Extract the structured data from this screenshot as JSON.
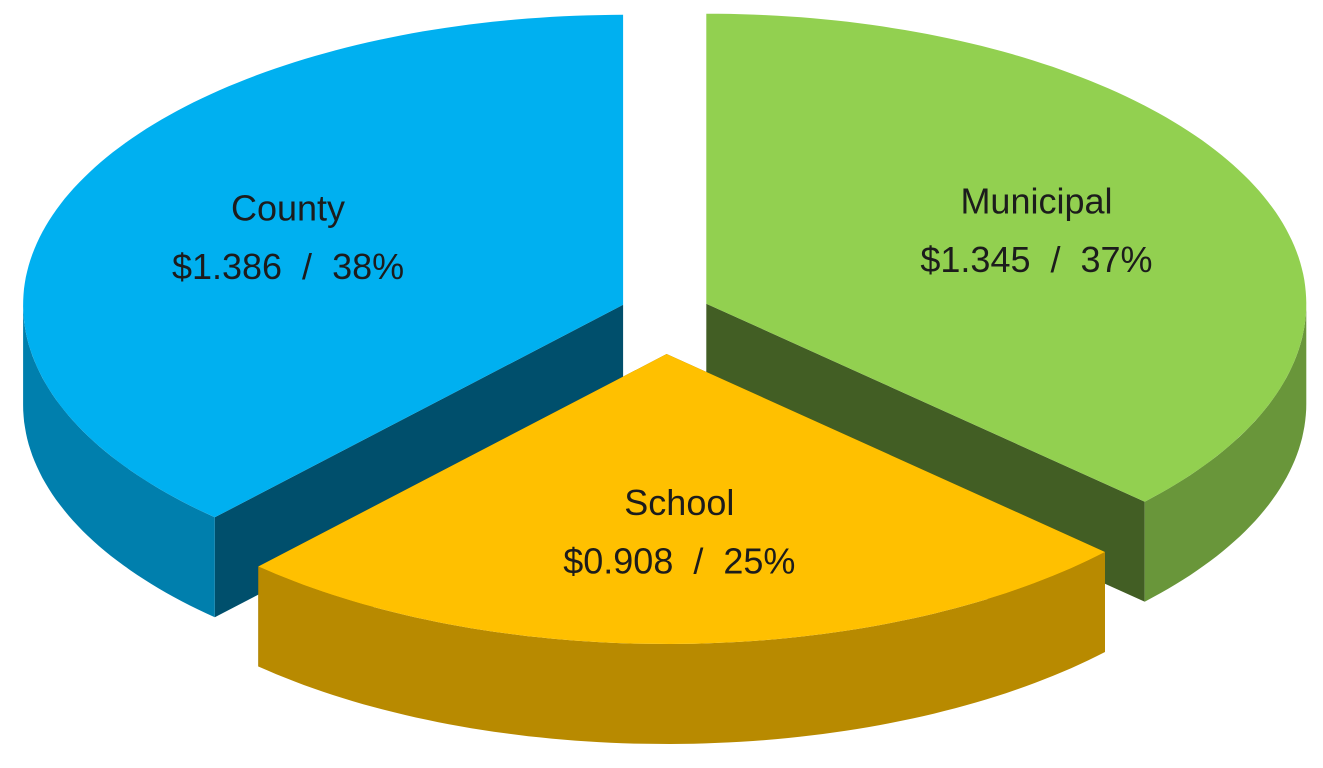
{
  "chart_data": {
    "type": "pie",
    "categories": [
      "Municipal",
      "School",
      "County"
    ],
    "values": [
      1.345,
      0.908,
      1.386
    ],
    "value_labels": [
      "$1.345",
      "$0.908",
      "$1.386"
    ],
    "percents": [
      37,
      25,
      38
    ],
    "percent_labels": [
      "37%",
      "25%",
      "38%"
    ],
    "separator": "/",
    "colors": [
      "#92d050",
      "#ffc000",
      "#00b0f0"
    ]
  }
}
